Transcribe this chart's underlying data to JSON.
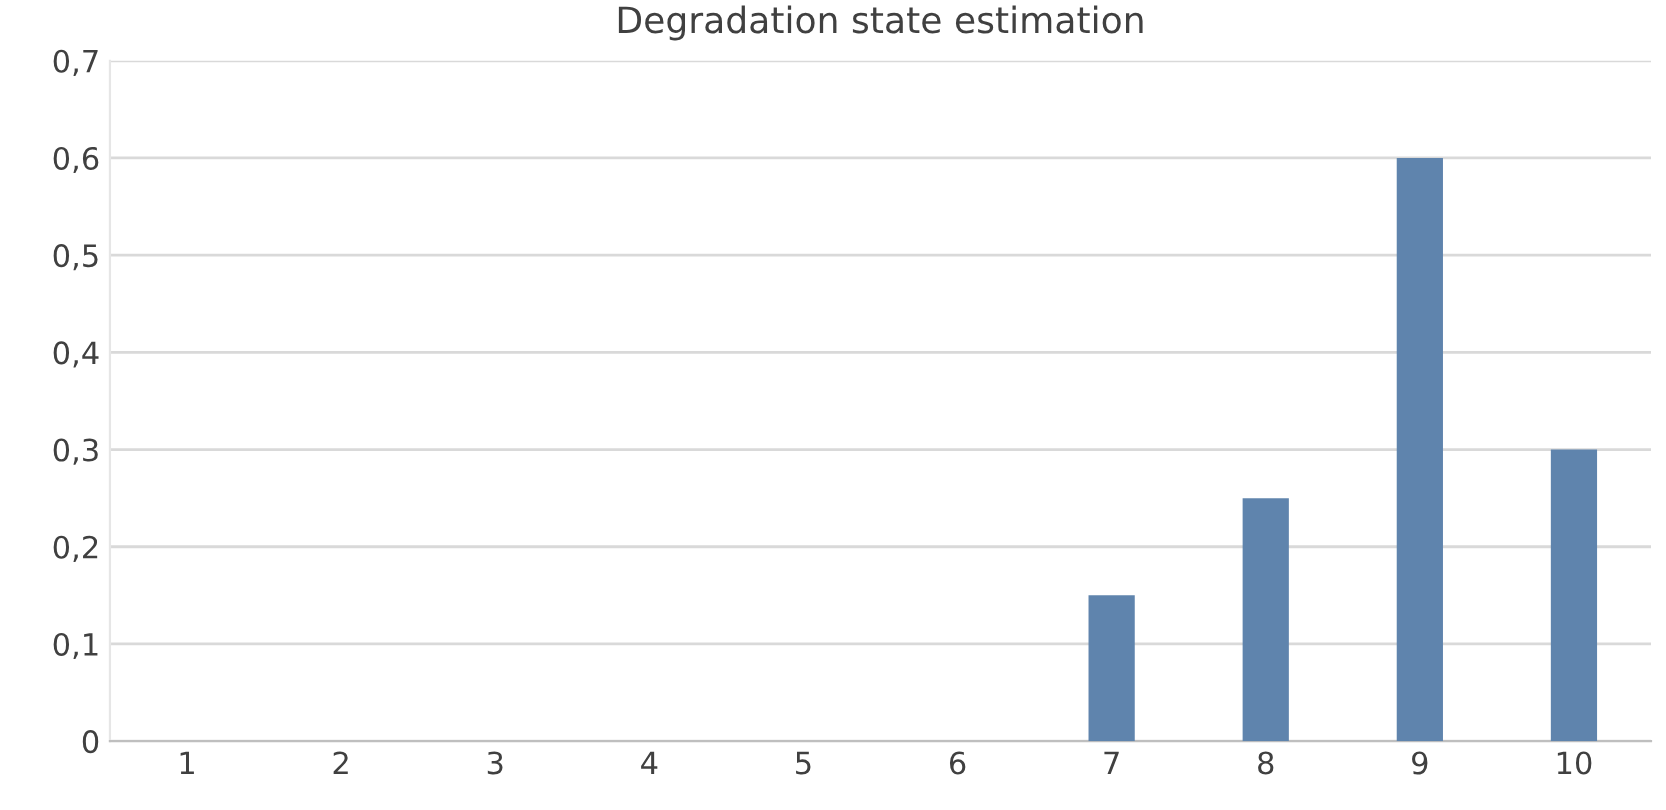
{
  "chart_data": {
    "type": "bar",
    "title": "Degradation state estimation",
    "categories": [
      "1",
      "2",
      "3",
      "4",
      "5",
      "6",
      "7",
      "8",
      "9",
      "10"
    ],
    "values": [
      0,
      0,
      0,
      0,
      0,
      0,
      0.15,
      0.25,
      0.6,
      0.3
    ],
    "color": "#5f84ad",
    "ylim": [
      0,
      0.7
    ],
    "yticks": [
      {
        "value": 0,
        "label": "0"
      },
      {
        "value": 0.1,
        "label": "0,1"
      },
      {
        "value": 0.2,
        "label": "0,2"
      },
      {
        "value": 0.3,
        "label": "0,3"
      },
      {
        "value": 0.4,
        "label": "0,4"
      },
      {
        "value": 0.5,
        "label": "0,5"
      },
      {
        "value": 0.6,
        "label": "0,6"
      },
      {
        "value": 0.7,
        "label": "0,7"
      }
    ],
    "grid": "y"
  }
}
